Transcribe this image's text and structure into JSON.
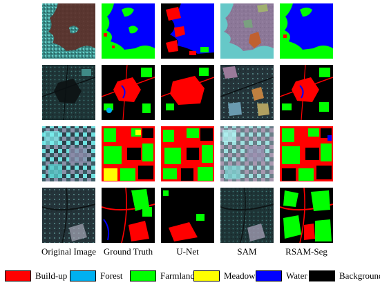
{
  "columns": [
    {
      "label": "Original Image"
    },
    {
      "label": "Ground Truth"
    },
    {
      "label": "U-Net"
    },
    {
      "label": "SAM"
    },
    {
      "label": "RSAM-Seg"
    }
  ],
  "legend": [
    {
      "label": "Build-up",
      "color": "#ff0000"
    },
    {
      "label": "Forest",
      "color": "#00b0f0"
    },
    {
      "label": "Farmland",
      "color": "#00ff00"
    },
    {
      "label": "Meadow",
      "color": "#ffff00"
    },
    {
      "label": "Water",
      "color": "#0000ff"
    },
    {
      "label": "Background",
      "color": "#000000"
    }
  ],
  "rows": [
    {
      "scene": "water-coast"
    },
    {
      "scene": "urban-center"
    },
    {
      "scene": "farmland-grid"
    },
    {
      "scene": "rural-roads"
    }
  ]
}
